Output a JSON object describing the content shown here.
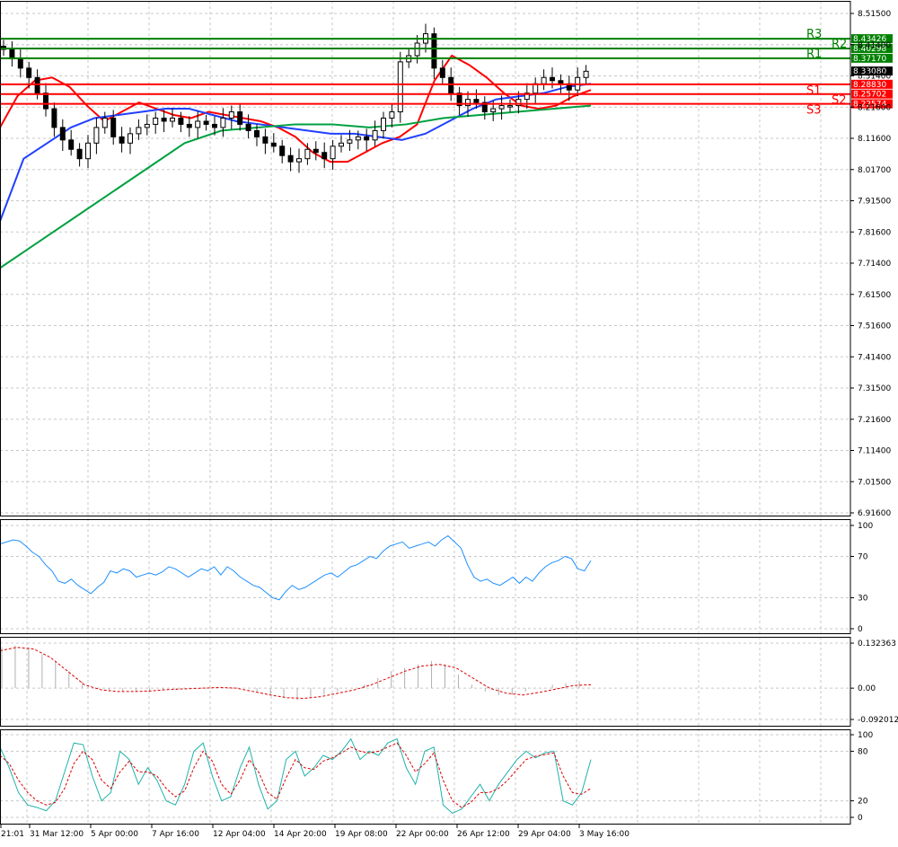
{
  "chart_data": [
    {
      "type": "candlestick",
      "panel": "price",
      "yticks": [
        "8.51500",
        "8.41400",
        "8.31400",
        "8.21600",
        "8.11600",
        "8.01700",
        "7.91500",
        "7.81600",
        "7.71400",
        "7.61500",
        "7.51600",
        "7.41400",
        "7.31500",
        "7.21600",
        "7.11400",
        "7.01500",
        "6.91600"
      ],
      "ylim": [
        6.916,
        8.515
      ],
      "current_price": "8.33080",
      "levels": [
        {
          "name": "R3",
          "value": 8.43426,
          "label": "8.43426",
          "color": "#008000"
        },
        {
          "name": "R2",
          "value": 8.40298,
          "label": "8.40298",
          "color": "#008000"
        },
        {
          "name": "R1",
          "value": 8.3717,
          "label": "8.37170",
          "color": "#008000"
        },
        {
          "name": "S1",
          "value": 8.2883,
          "label": "8.28830",
          "color": "#ff0000"
        },
        {
          "name": "S2",
          "value": 8.25702,
          "label": "8.25702",
          "color": "#ff0000"
        },
        {
          "name": "S3",
          "value": 8.22574,
          "label": "8.22574",
          "color": "#ff0000"
        }
      ],
      "candle_closes": [
        8.4,
        8.37,
        8.34,
        8.31,
        8.26,
        8.21,
        8.15,
        8.11,
        8.08,
        8.05,
        8.1,
        8.15,
        8.18,
        8.12,
        8.1,
        8.13,
        8.15,
        8.16,
        8.18,
        8.17,
        8.18,
        8.16,
        8.15,
        8.17,
        8.16,
        8.15,
        8.18,
        8.2,
        8.16,
        8.14,
        8.12,
        8.1,
        8.09,
        8.06,
        8.04,
        8.05,
        8.08,
        8.07,
        8.05,
        8.09,
        8.1,
        8.11,
        8.12,
        8.11,
        8.14,
        8.18,
        8.2,
        8.36,
        8.38,
        8.42,
        8.45,
        8.34,
        8.31,
        8.26,
        8.22,
        8.24,
        8.23,
        8.2,
        8.21,
        8.22,
        8.22,
        8.24,
        8.26,
        8.29,
        8.31,
        8.3,
        8.29,
        8.27,
        8.31,
        8.33
      ],
      "moving_averages": [
        {
          "color": "#ff0000",
          "values": [
            8.15,
            8.25,
            8.3,
            8.31,
            8.28,
            8.22,
            8.17,
            8.2,
            8.23,
            8.21,
            8.19,
            8.18,
            8.2,
            8.19,
            8.18,
            8.17,
            8.15,
            8.12,
            8.07,
            8.04,
            8.04,
            8.07,
            8.1,
            8.12,
            8.16,
            8.3,
            8.38,
            8.35,
            8.31,
            8.26,
            8.22,
            8.21,
            8.22,
            8.25,
            8.27
          ]
        },
        {
          "color": "#2040ff",
          "values": [
            7.85,
            8.05,
            8.1,
            8.15,
            8.18,
            8.19,
            8.2,
            8.21,
            8.21,
            8.19,
            8.17,
            8.16,
            8.15,
            8.14,
            8.13,
            8.13,
            8.12,
            8.11,
            8.13,
            8.17,
            8.21,
            8.24,
            8.25,
            8.26,
            8.28,
            8.29
          ]
        },
        {
          "color": "#00a040",
          "values": [
            7.7,
            7.78,
            7.86,
            7.94,
            8.02,
            8.1,
            8.14,
            8.15,
            8.16,
            8.16,
            8.15,
            8.16,
            8.18,
            8.19,
            8.2,
            8.21,
            8.22
          ]
        }
      ]
    },
    {
      "type": "line",
      "panel": "rsi",
      "yticks": [
        "100",
        "70",
        "30",
        "0"
      ],
      "ylim": [
        0,
        100
      ],
      "series": [
        {
          "color": "#1e90ff",
          "values": [
            82,
            84,
            86,
            85,
            80,
            74,
            70,
            62,
            56,
            46,
            44,
            48,
            42,
            38,
            34,
            40,
            45,
            56,
            54,
            58,
            56,
            50,
            52,
            54,
            52,
            55,
            60,
            58,
            54,
            50,
            54,
            58,
            56,
            60,
            52,
            60,
            56,
            50,
            46,
            42,
            40,
            35,
            30,
            28,
            36,
            42,
            38,
            40,
            44,
            48,
            52,
            54,
            50,
            55,
            60,
            62,
            66,
            70,
            68,
            75,
            80,
            82,
            84,
            78,
            80,
            82,
            84,
            80,
            86,
            90,
            84,
            78,
            62,
            50,
            46,
            48,
            44,
            42,
            46,
            50,
            44,
            50,
            46,
            54,
            60,
            64,
            66,
            70,
            68,
            58,
            56,
            66
          ]
        }
      ]
    },
    {
      "type": "bar",
      "panel": "macd",
      "yticks": [
        "0.132363",
        "0.00",
        "-0.092012"
      ],
      "ylim": [
        -0.092012,
        0.132363
      ],
      "histogram": [
        0.12,
        0.125,
        0.12,
        0.1,
        0.08,
        0.05,
        0.02,
        0.0,
        -0.005,
        -0.01,
        -0.01,
        -0.01,
        -0.005,
        -0.005,
        -0.002,
        0.0,
        0.002,
        0.004,
        0.0,
        -0.01,
        -0.02,
        -0.03,
        -0.035,
        -0.03,
        -0.02,
        -0.01,
        0.0,
        0.01,
        0.03,
        0.05,
        0.06,
        0.07,
        0.08,
        0.07,
        0.04,
        0.01,
        -0.01,
        -0.02,
        -0.02,
        -0.01,
        0.0,
        0.01,
        0.015,
        0.02
      ],
      "signal": [
        0.11,
        0.12,
        0.115,
        0.09,
        0.05,
        0.01,
        -0.005,
        -0.01,
        -0.01,
        -0.008,
        -0.004,
        -0.002,
        0.0,
        0.002,
        0.0,
        -0.01,
        -0.02,
        -0.028,
        -0.03,
        -0.025,
        -0.015,
        -0.005,
        0.01,
        0.03,
        0.05,
        0.065,
        0.07,
        0.06,
        0.03,
        0.0,
        -0.015,
        -0.02,
        -0.012,
        -0.002,
        0.008,
        0.01
      ]
    },
    {
      "type": "line",
      "panel": "stochastic",
      "yticks": [
        "100",
        "80",
        "20",
        "0"
      ],
      "ylim": [
        0,
        100
      ],
      "series": [
        {
          "color": "#20b2aa",
          "values": [
            85,
            60,
            30,
            15,
            12,
            8,
            20,
            55,
            90,
            88,
            50,
            20,
            30,
            80,
            70,
            40,
            60,
            45,
            20,
            15,
            40,
            80,
            90,
            50,
            20,
            25,
            60,
            85,
            40,
            10,
            20,
            70,
            80,
            50,
            60,
            75,
            70,
            80,
            95,
            70,
            80,
            75,
            90,
            95,
            60,
            40,
            80,
            85,
            15,
            5,
            10,
            25,
            40,
            20,
            40,
            55,
            70,
            80,
            72,
            78,
            80,
            20,
            15,
            30,
            70
          ]
        },
        {
          "color": "#dd0000",
          "values": [
            75,
            65,
            45,
            30,
            20,
            15,
            18,
            35,
            65,
            80,
            70,
            45,
            35,
            55,
            68,
            55,
            55,
            50,
            35,
            25,
            32,
            60,
            80,
            68,
            40,
            28,
            45,
            70,
            55,
            30,
            22,
            48,
            70,
            60,
            58,
            68,
            72,
            78,
            85,
            80,
            78,
            80,
            85,
            90,
            75,
            55,
            65,
            78,
            45,
            20,
            12,
            18,
            30,
            30,
            35,
            45,
            58,
            70,
            74,
            76,
            78,
            50,
            30,
            28,
            35
          ]
        }
      ]
    }
  ],
  "xaxis": {
    "labels": [
      "21:01",
      "31 Mar 12:00",
      "5 Apr 00:00",
      "7 Apr 16:00",
      "12 Apr 04:00",
      "14 Apr 20:00",
      "19 Apr 08:00",
      "22 Apr 00:00",
      "26 Apr 12:00",
      "29 Apr 04:00",
      "3 May 16:00"
    ]
  }
}
